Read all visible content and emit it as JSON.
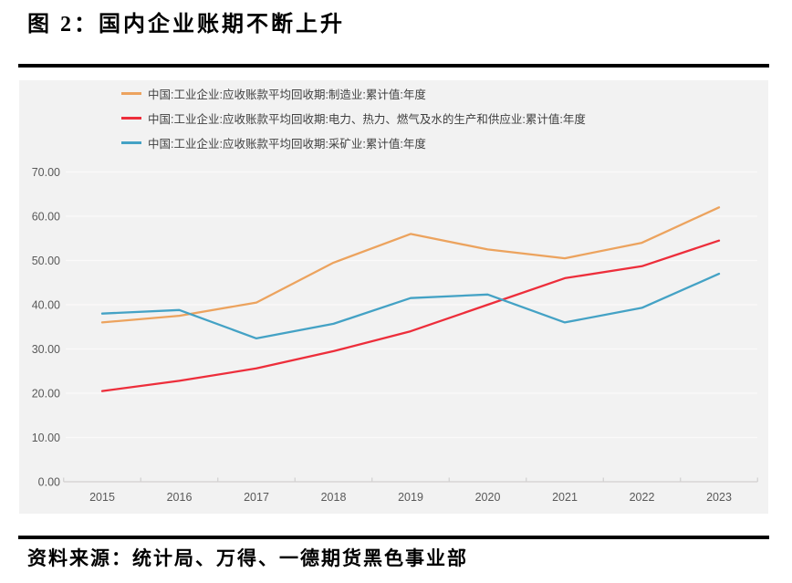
{
  "page": {
    "title": "图 2：国内企业账期不断上升",
    "source": "资料来源：统计局、万得、一德期货黑色事业部"
  },
  "chart_data": {
    "type": "line",
    "title": "",
    "xlabel": "",
    "ylabel": "",
    "categories": [
      "2015",
      "2016",
      "2017",
      "2018",
      "2019",
      "2020",
      "2021",
      "2022",
      "2023"
    ],
    "series": [
      {
        "name": "中国:工业企业:应收账款平均回收期:制造业:累计值:年度",
        "color": "#ECA35E",
        "values": [
          36.0,
          37.5,
          40.5,
          49.5,
          56.0,
          52.5,
          50.5,
          54.0,
          62.0
        ]
      },
      {
        "name": "中国:工业企业:应收账款平均回收期:电力、热力、燃气及水的生产和供应业:累计值:年度",
        "color": "#ED2E3B",
        "values": [
          20.5,
          22.8,
          25.6,
          29.5,
          34.0,
          40.0,
          46.0,
          48.7,
          54.5
        ]
      },
      {
        "name": "中国:工业企业:应收账款平均回收期:采矿业:累计值:年度",
        "color": "#44A2C5",
        "values": [
          38.0,
          38.8,
          32.4,
          35.7,
          41.5,
          42.3,
          36.0,
          39.3,
          47.0
        ]
      }
    ],
    "ylim": [
      0,
      70
    ],
    "ytick_step": 10,
    "ytick_labels": [
      "0.00",
      "10.00",
      "20.00",
      "30.00",
      "40.00",
      "50.00",
      "60.00",
      "70.00"
    ],
    "grid": true,
    "legend_position": "top-left"
  },
  "colors": {
    "panel_bg": "#F2F2F2",
    "gridline": "#FBFAFA",
    "axis_line": "#D2D0D0",
    "tick_label": "#595959",
    "legend_text": "#3F3F3F",
    "divider": "#000000"
  }
}
